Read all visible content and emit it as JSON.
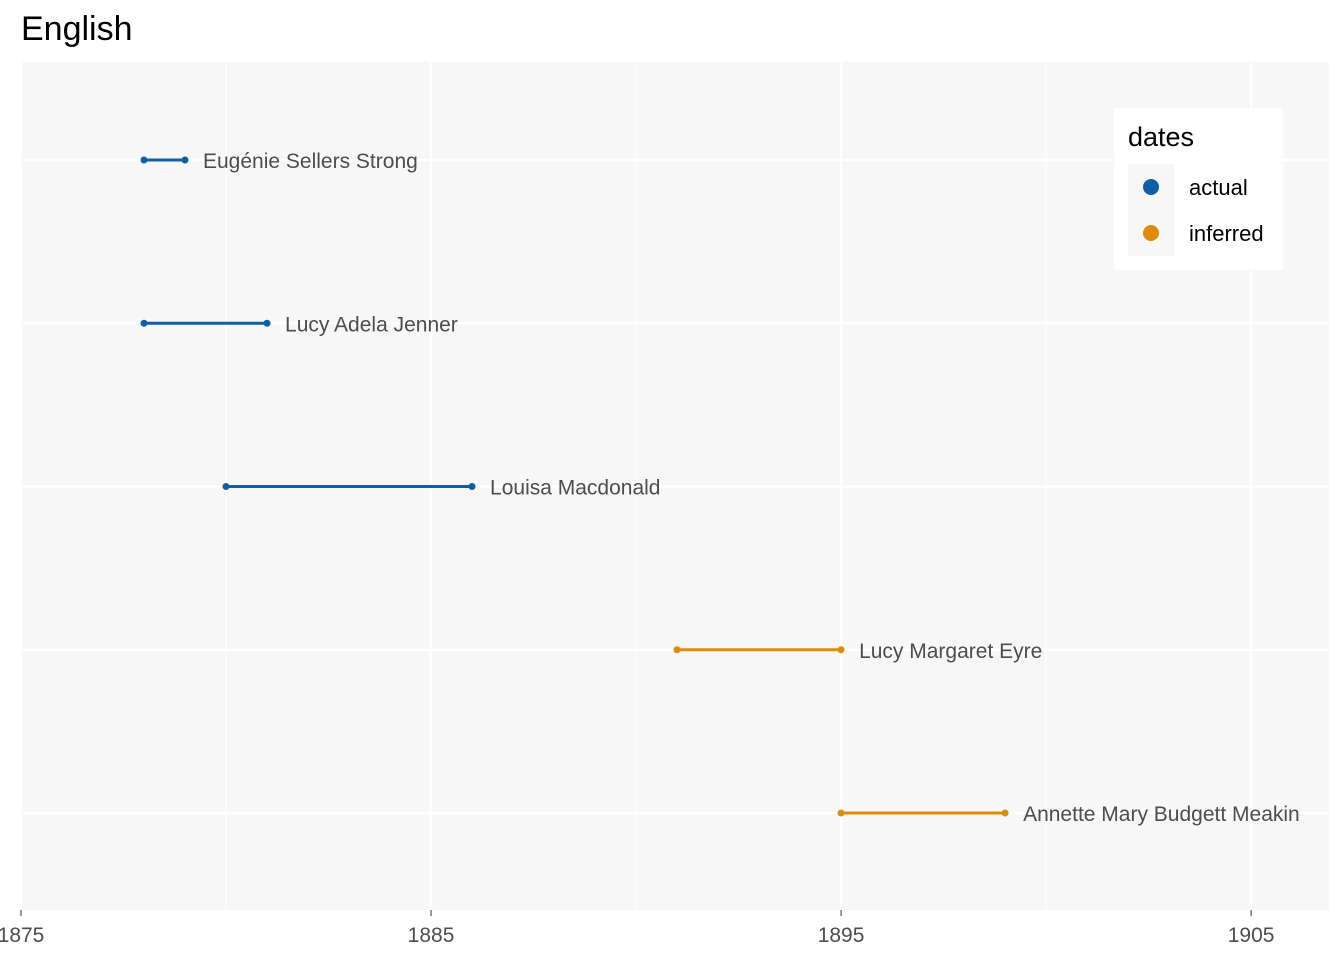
{
  "chart_data": {
    "type": "line",
    "title": "English",
    "xlabel": "",
    "ylabel": "",
    "xlim": [
      1875.0,
      1906.9
    ],
    "x_ticks": [
      1875,
      1885,
      1895,
      1905
    ],
    "x_tick_labels": [
      "1875",
      "1885",
      "1895",
      "1905"
    ],
    "grid": true,
    "legend": {
      "title": "dates",
      "position": "top-right",
      "entries": [
        {
          "label": "actual",
          "color": "#0E5FA8"
        },
        {
          "label": "inferred",
          "color": "#E08A0B"
        }
      ]
    },
    "series": [
      {
        "label": "Eugénie Sellers Strong",
        "start": 1878.0,
        "end": 1879.0,
        "dates": "actual"
      },
      {
        "label": "Lucy Adela Jenner",
        "start": 1878.0,
        "end": 1881.0,
        "dates": "actual"
      },
      {
        "label": "Louisa Macdonald",
        "start": 1880.0,
        "end": 1886.0,
        "dates": "actual"
      },
      {
        "label": "Lucy Margaret Eyre",
        "start": 1891.0,
        "end": 1895.0,
        "dates": "inferred"
      },
      {
        "label": "Annette Mary Budgett Meakin",
        "start": 1895.0,
        "end": 1899.0,
        "dates": "inferred"
      }
    ]
  }
}
